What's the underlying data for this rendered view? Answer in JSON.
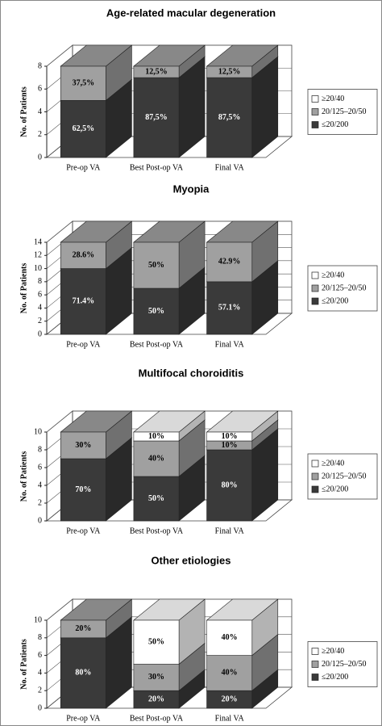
{
  "chart_data": [
    {
      "type": "bar",
      "stacked": true,
      "title": "Age-related macular degeneration",
      "y_label": "No. of Patients",
      "categories": [
        "Pre-op VA",
        "Best Post-op VA",
        "Final VA"
      ],
      "series": [
        {
          "name": "≤20/200",
          "color": "#3a3a3a",
          "values": [
            5,
            7,
            7
          ],
          "value_labels": [
            "62,5%",
            "87,5%",
            "87,5%"
          ]
        },
        {
          "name": "20/125–20/50",
          "color": "#a0a0a0",
          "values": [
            3,
            1,
            1
          ],
          "value_labels": [
            "37,5%",
            "12,5%",
            "12,5%"
          ]
        },
        {
          "name": "≥20/40",
          "color": "#ffffff",
          "values": [
            0,
            0,
            0
          ],
          "value_labels": [
            null,
            null,
            null
          ]
        }
      ],
      "ylim": [
        0,
        8
      ],
      "yticks": [
        0,
        2,
        4,
        6,
        8
      ],
      "grid": true,
      "legend": "right"
    },
    {
      "type": "bar",
      "stacked": true,
      "title": "Myopia",
      "y_label": "No. of Patients",
      "categories": [
        "Pre-op VA",
        "Best Post-op VA",
        "Final VA"
      ],
      "series": [
        {
          "name": "≤20/200",
          "color": "#3a3a3a",
          "values": [
            10,
            7,
            8
          ],
          "value_labels": [
            "71.4%",
            "50%",
            "57.1%"
          ]
        },
        {
          "name": "20/125–20/50",
          "color": "#a0a0a0",
          "values": [
            4,
            7,
            6
          ],
          "value_labels": [
            "28.6%",
            "50%",
            "42.9%"
          ]
        },
        {
          "name": "≥20/40",
          "color": "#ffffff",
          "values": [
            0,
            0,
            0
          ],
          "value_labels": [
            null,
            null,
            null
          ]
        }
      ],
      "ylim": [
        0,
        14
      ],
      "yticks": [
        0,
        2,
        4,
        6,
        8,
        10,
        12,
        14
      ],
      "grid": true,
      "legend": "right"
    },
    {
      "type": "bar",
      "stacked": true,
      "title": "Multifocal choroiditis",
      "y_label": "No. of Patients",
      "categories": [
        "Pre-op VA",
        "Best Post-op VA",
        "Final VA"
      ],
      "series": [
        {
          "name": "≤20/200",
          "color": "#3a3a3a",
          "values": [
            7,
            5,
            8
          ],
          "value_labels": [
            "70%",
            "50%",
            "80%"
          ]
        },
        {
          "name": "20/125–20/50",
          "color": "#a0a0a0",
          "values": [
            3,
            4,
            1
          ],
          "value_labels": [
            "30%",
            "40%",
            "10%"
          ]
        },
        {
          "name": "≥20/40",
          "color": "#ffffff",
          "values": [
            0,
            1,
            1
          ],
          "value_labels": [
            null,
            "10%",
            "10%"
          ]
        }
      ],
      "ylim": [
        0,
        10
      ],
      "yticks": [
        0,
        2,
        4,
        6,
        8,
        10
      ],
      "grid": true,
      "legend": "right"
    },
    {
      "type": "bar",
      "stacked": true,
      "title": "Other etiologies",
      "y_label": "No. of Patients",
      "categories": [
        "Pre-op VA",
        "Best Post-op VA",
        "Final VA"
      ],
      "series": [
        {
          "name": "≤20/200",
          "color": "#3a3a3a",
          "values": [
            8,
            2,
            2
          ],
          "value_labels": [
            "80%",
            "20%",
            "20%"
          ]
        },
        {
          "name": "20/125–20/50",
          "color": "#a0a0a0",
          "values": [
            2,
            3,
            4
          ],
          "value_labels": [
            "20%",
            "30%",
            "40%"
          ]
        },
        {
          "name": "≥20/40",
          "color": "#ffffff",
          "values": [
            0,
            5,
            4
          ],
          "value_labels": [
            null,
            "50%",
            "40%"
          ]
        }
      ],
      "ylim": [
        0,
        10
      ],
      "yticks": [
        0,
        2,
        4,
        6,
        8,
        10
      ],
      "grid": true,
      "legend": "right"
    }
  ]
}
